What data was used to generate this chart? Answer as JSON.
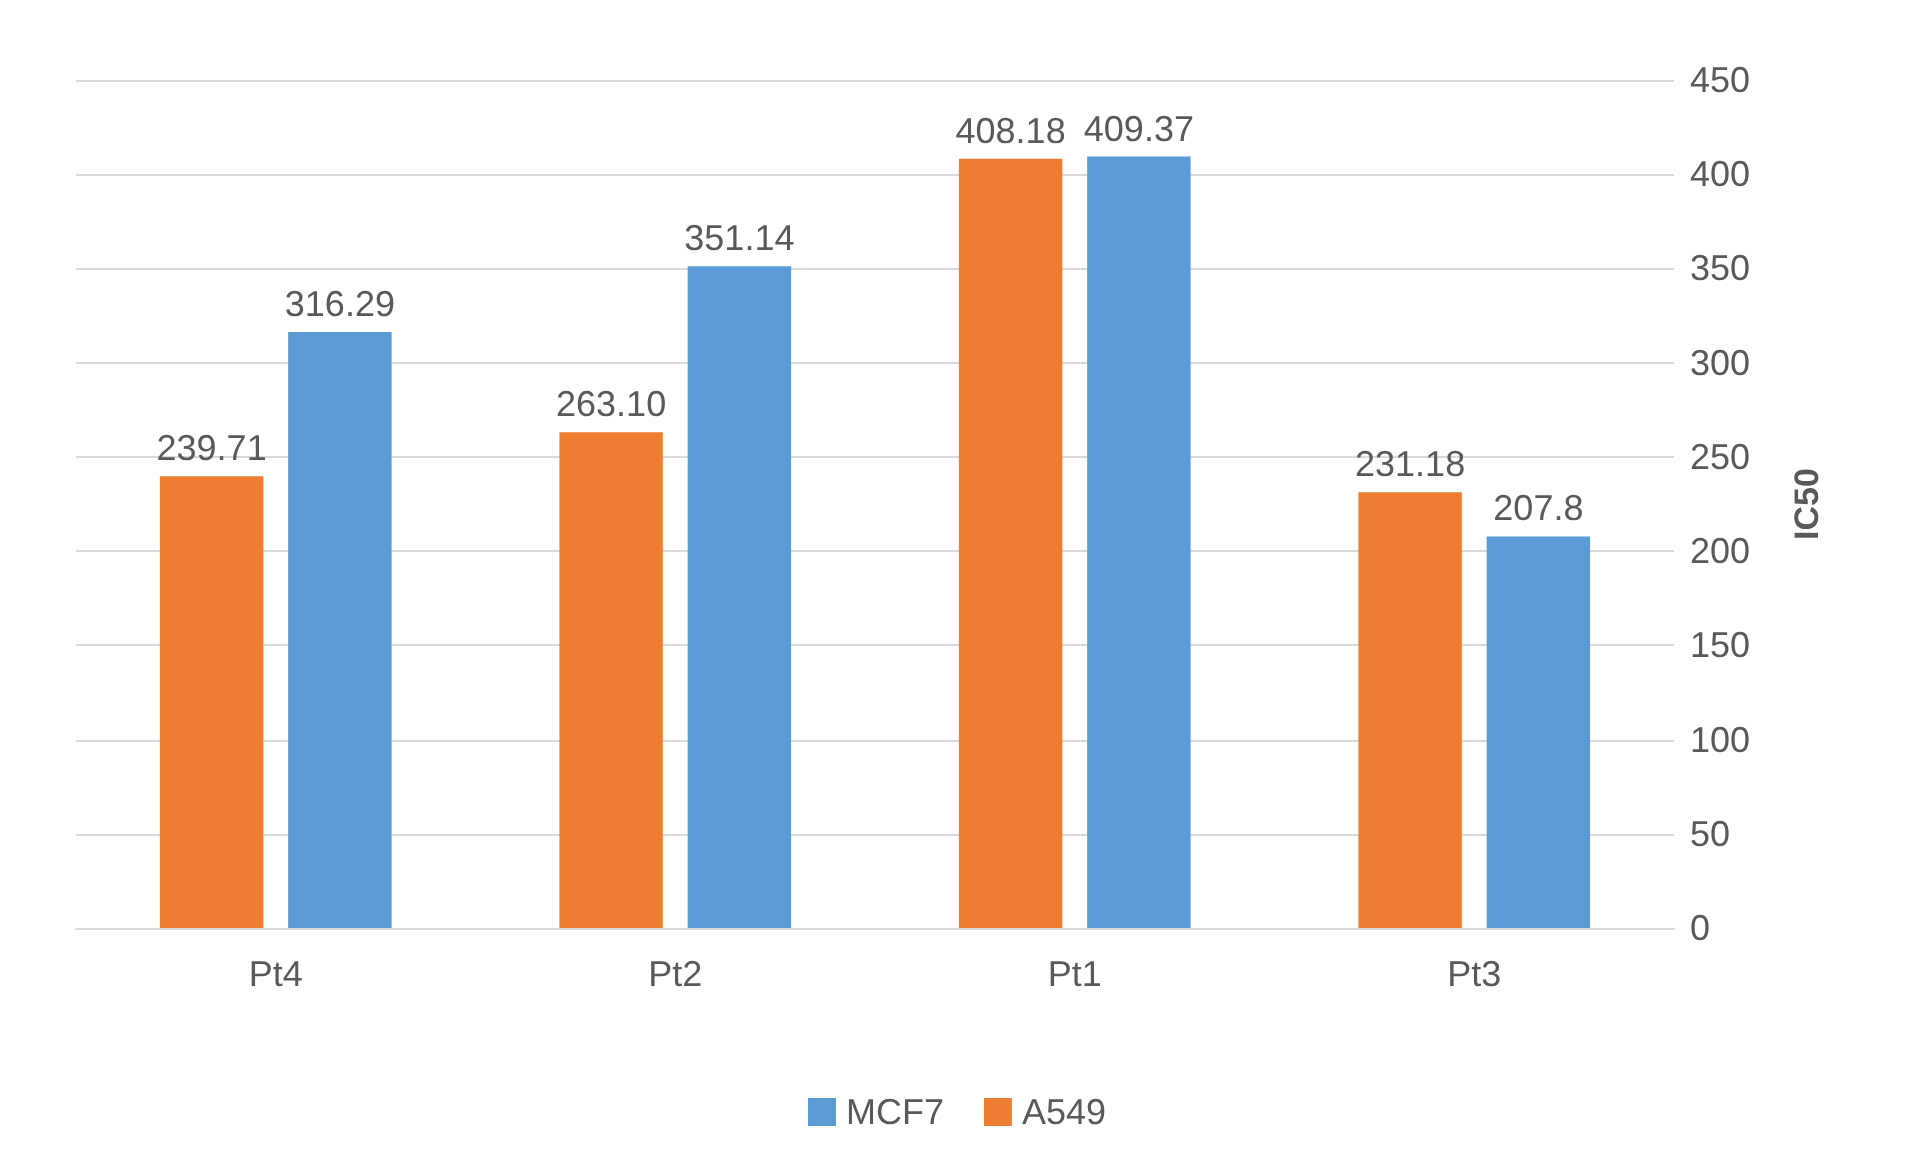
{
  "chart_data": {
    "type": "bar",
    "categories": [
      "Pt4",
      "Pt2",
      "Pt1",
      "Pt3"
    ],
    "ylabel": "IC50",
    "series": [
      {
        "name": "A549",
        "color": "#ed7d31",
        "values": [
          239.71,
          263.1,
          408.18,
          231.18
        ],
        "value_labels": [
          "239.71",
          "263.10",
          "408.18",
          "231.18"
        ]
      },
      {
        "name": "MCF7",
        "color": "#5b9bd5",
        "values": [
          316.29,
          351.14,
          409.37,
          207.8
        ],
        "value_labels": [
          "316.29",
          "351.14",
          "409.37",
          "207.8"
        ]
      }
    ],
    "ylim": [
      0,
      450
    ],
    "yticks": [
      0,
      50,
      100,
      150,
      200,
      250,
      300,
      350,
      400,
      450
    ],
    "grid": "y",
    "legend": "bottom"
  }
}
